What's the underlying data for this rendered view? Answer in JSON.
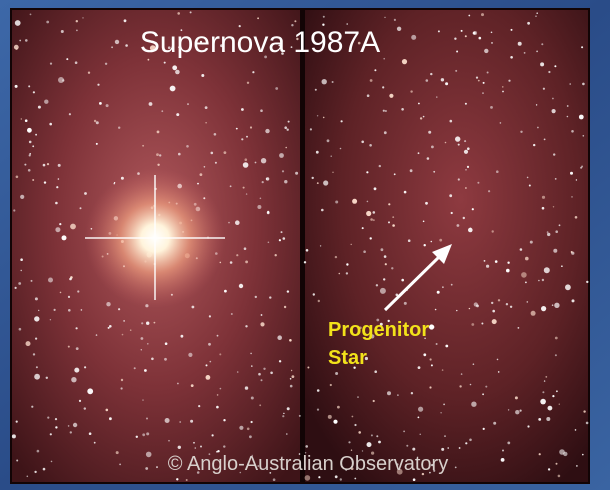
{
  "title": "Supernova 1987A",
  "annotation": [
    "Progenitor",
    "Star"
  ],
  "credit": "© Anglo-Australian Observatory"
}
